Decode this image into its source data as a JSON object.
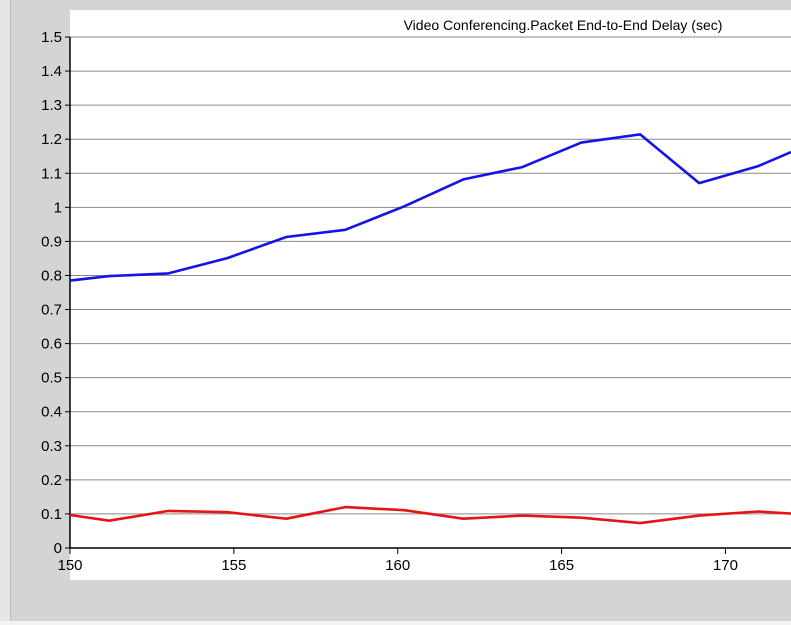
{
  "chart_data": {
    "type": "line",
    "title": "Video Conferencing.Packet End-to-End Delay (sec)",
    "xlabel": "",
    "ylabel": "",
    "xlim": [
      150,
      172
    ],
    "ylim": [
      0,
      1.5
    ],
    "x_ticks": [
      150,
      155,
      160,
      165,
      170
    ],
    "y_ticks": [
      0,
      0.1,
      0.2,
      0.3,
      0.4,
      0.5,
      0.6,
      0.7,
      0.8,
      0.9,
      1,
      1.1,
      1.2,
      1.3,
      1.4,
      1.5
    ],
    "x_tick_labels": [
      "150",
      "155",
      "160",
      "165",
      "170"
    ],
    "y_tick_labels": [
      "0",
      "0.1",
      "0.2",
      "0.3",
      "0.4",
      "0.5",
      "0.6",
      "0.7",
      "0.8",
      "0.9",
      "1",
      "1.1",
      "1.2",
      "1.3",
      "1.4",
      "1.5"
    ],
    "grid": true,
    "series": [
      {
        "color": "#1414e6",
        "x": [
          150,
          151.2,
          153,
          154.8,
          156.6,
          158.4,
          160.2,
          162,
          163.8,
          165.6,
          167.4,
          169.2,
          171,
          172
        ],
        "y": [
          0.785,
          0.798,
          0.806,
          0.851,
          0.913,
          0.934,
          1.003,
          1.082,
          1.118,
          1.19,
          1.214,
          1.071,
          1.121,
          1.162
        ]
      },
      {
        "color": "#e61414",
        "x": [
          150,
          151.2,
          153,
          154.8,
          156.6,
          158.4,
          160.2,
          162,
          163.8,
          165.6,
          167.4,
          169.2,
          171,
          172
        ],
        "y": [
          0.097,
          0.08,
          0.109,
          0.105,
          0.086,
          0.12,
          0.111,
          0.086,
          0.095,
          0.089,
          0.073,
          0.095,
          0.107,
          0.101
        ]
      }
    ]
  }
}
